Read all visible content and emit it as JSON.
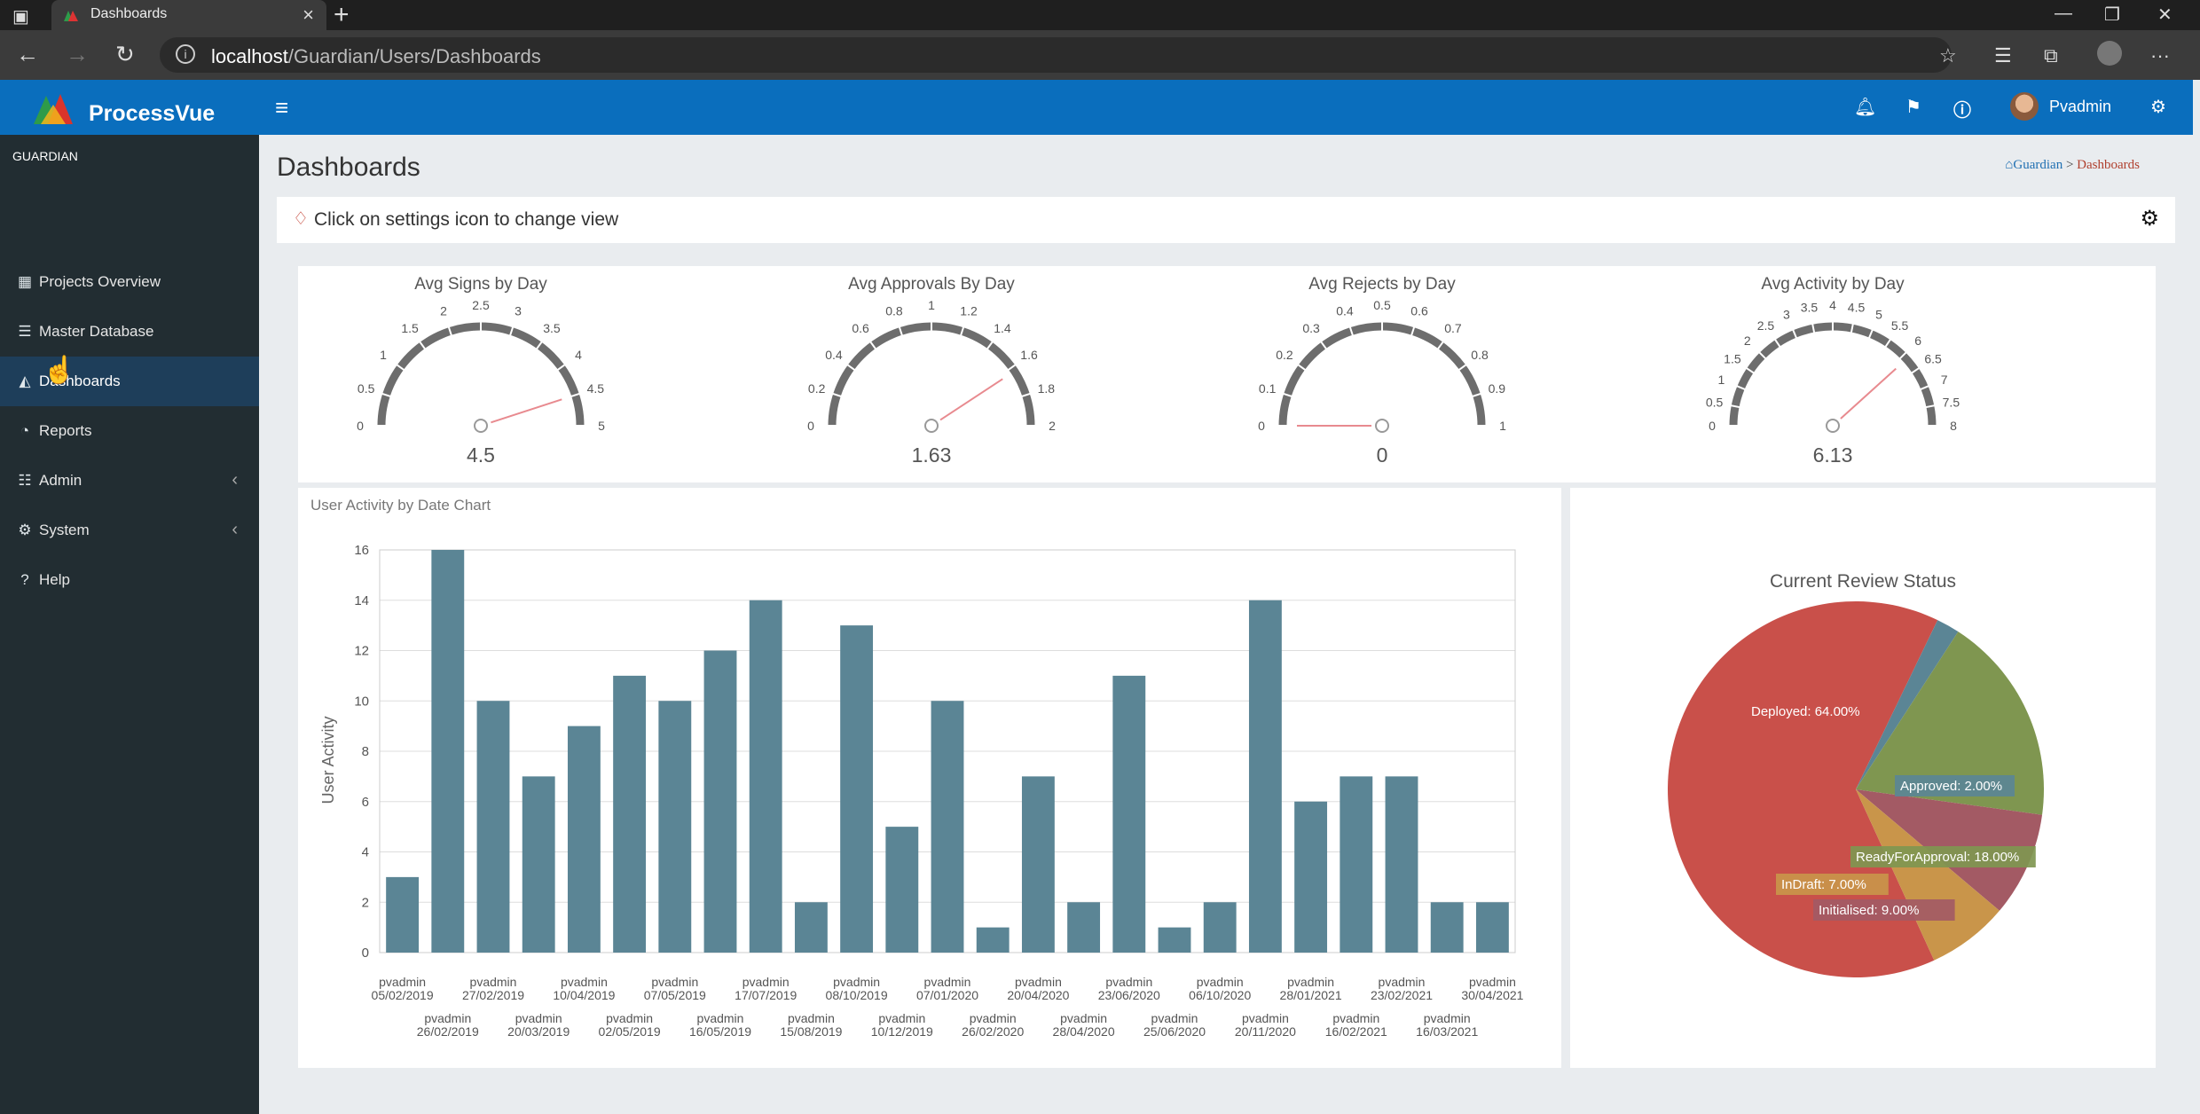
{
  "browser": {
    "tab_title": "Dashboards",
    "url_host": "localhost",
    "url_path": "/Guardian/Users/Dashboards"
  },
  "app": {
    "brand": "ProcessVue",
    "section_label": "GUARDIAN",
    "sidebar": [
      {
        "label": "Projects Overview",
        "icon": "grid-icon",
        "active": false,
        "expandable": false
      },
      {
        "label": "Master Database",
        "icon": "database-icon",
        "active": false,
        "expandable": false
      },
      {
        "label": "Dashboards",
        "icon": "area-chart-icon",
        "active": true,
        "expandable": false
      },
      {
        "label": "Reports",
        "icon": "pie-chart-icon",
        "active": false,
        "expandable": false
      },
      {
        "label": "Admin",
        "icon": "list-icon",
        "active": false,
        "expandable": true
      },
      {
        "label": "System",
        "icon": "gear-icon",
        "active": false,
        "expandable": true
      },
      {
        "label": "Help",
        "icon": "question-icon",
        "active": false,
        "expandable": false
      }
    ],
    "user_name": "Pvadmin"
  },
  "page": {
    "title": "Dashboards",
    "breadcrumb_root": "Guardian",
    "breadcrumb_sep": " > ",
    "breadcrumb_current": "Dashboards",
    "hint": "Click on settings icon to change view"
  },
  "gauges": [
    {
      "title": "Avg Signs by Day",
      "value": 4.5,
      "display": "4.5",
      "max": 5,
      "ticks": [
        "0",
        "0.5",
        "1",
        "1.5",
        "2",
        "2.5",
        "3",
        "3.5",
        "4",
        "4.5",
        "5"
      ]
    },
    {
      "title": "Avg Approvals By Day",
      "value": 1.63,
      "display": "1.63",
      "max": 2,
      "ticks": [
        "0",
        "0.2",
        "0.4",
        "0.6",
        "0.8",
        "1",
        "1.2",
        "1.4",
        "1.6",
        "1.8",
        "2"
      ]
    },
    {
      "title": "Avg Rejects by Day",
      "value": 0,
      "display": "0",
      "max": 1,
      "ticks": [
        "0",
        "0.1",
        "0.2",
        "0.3",
        "0.4",
        "0.5",
        "0.6",
        "0.7",
        "0.8",
        "0.9",
        "1"
      ]
    },
    {
      "title": "Avg Activity by Day",
      "value": 6.13,
      "display": "6.13",
      "max": 8,
      "ticks": [
        "0",
        "0.5",
        "1",
        "1.5",
        "2",
        "2.5",
        "3",
        "3.5",
        "4",
        "4.5",
        "5",
        "5.5",
        "6",
        "6.5",
        "7",
        "7.5",
        "8"
      ]
    }
  ],
  "chart_data": [
    {
      "type": "bar",
      "title": "User Activity by Date Chart",
      "ylabel": "User Activity",
      "xlabel": "",
      "ylim": [
        0,
        16
      ],
      "yticks": [
        "0",
        "2",
        "4",
        "6",
        "8",
        "10",
        "12",
        "14",
        "16"
      ],
      "series_color": "#5b8595",
      "grid": true,
      "categories": [
        {
          "user": "pvadmin",
          "date": "05/02/2019"
        },
        {
          "user": "pvadmin",
          "date": "26/02/2019"
        },
        {
          "user": "pvadmin",
          "date": "27/02/2019"
        },
        {
          "user": "pvadmin",
          "date": "20/03/2019"
        },
        {
          "user": "pvadmin",
          "date": "10/04/2019"
        },
        {
          "user": "pvadmin",
          "date": "02/05/2019"
        },
        {
          "user": "pvadmin",
          "date": "07/05/2019"
        },
        {
          "user": "pvadmin",
          "date": "16/05/2019"
        },
        {
          "user": "pvadmin",
          "date": "17/07/2019"
        },
        {
          "user": "pvadmin",
          "date": "15/08/2019"
        },
        {
          "user": "pvadmin",
          "date": "08/10/2019"
        },
        {
          "user": "pvadmin",
          "date": "10/12/2019"
        },
        {
          "user": "pvadmin",
          "date": "07/01/2020"
        },
        {
          "user": "pvadmin",
          "date": "26/02/2020"
        },
        {
          "user": "pvadmin",
          "date": "20/04/2020"
        },
        {
          "user": "pvadmin",
          "date": "28/04/2020"
        },
        {
          "user": "pvadmin",
          "date": "23/06/2020"
        },
        {
          "user": "pvadmin",
          "date": "25/06/2020"
        },
        {
          "user": "pvadmin",
          "date": "06/10/2020"
        },
        {
          "user": "pvadmin",
          "date": "20/11/2020"
        },
        {
          "user": "pvadmin",
          "date": "28/01/2021"
        },
        {
          "user": "pvadmin",
          "date": "16/02/2021"
        },
        {
          "user": "pvadmin",
          "date": "23/02/2021"
        },
        {
          "user": "pvadmin",
          "date": "16/03/2021"
        },
        {
          "user": "pvadmin",
          "date": "30/04/2021"
        }
      ],
      "values": [
        3,
        16,
        10,
        7,
        9,
        11,
        10,
        12,
        14,
        2,
        13,
        5,
        10,
        1,
        7,
        2,
        11,
        1,
        2,
        14,
        6,
        7,
        7,
        2,
        2
      ]
    },
    {
      "type": "pie",
      "title": "Current Review Status",
      "slices": [
        {
          "label": "Deployed: 64.00%",
          "value": 64,
          "color": "#c9504a"
        },
        {
          "label": "Approved: 2.00%",
          "value": 2,
          "color": "#5b8595"
        },
        {
          "label": "ReadyForApproval: 18.00%",
          "value": 18,
          "color": "#7f9650"
        },
        {
          "label": "Initialised: 9.00%",
          "value": 9,
          "color": "#a35a64"
        },
        {
          "label": "InDraft: 7.00%",
          "value": 7,
          "color": "#c9954a"
        }
      ]
    }
  ]
}
